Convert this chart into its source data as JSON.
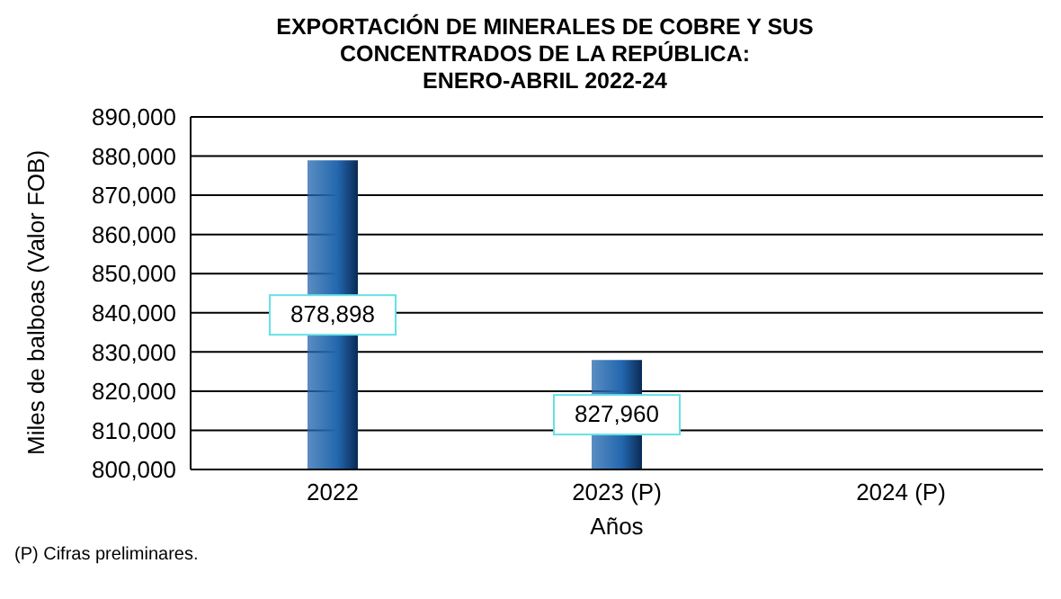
{
  "chart_data": {
    "type": "bar",
    "title": "EXPORTACIÓN DE MINERALES DE COBRE Y SUS CONCENTRADOS DE LA REPÚBLICA: ENERO-ABRIL 2022-24",
    "xlabel": "Años",
    "ylabel": "Miles de balboas (Valor FOB)",
    "annotations": [
      "(P) Cifras preliminares."
    ],
    "categories": [
      "2022",
      "2023 (P)",
      "2024 (P)"
    ],
    "values": [
      878898,
      827960,
      null
    ],
    "color": "#2367ae",
    "ylim": [
      800000,
      890000
    ],
    "yticks": [
      {
        "value": 800000,
        "label": "800,000"
      },
      {
        "value": 810000,
        "label": "810,000"
      },
      {
        "value": 820000,
        "label": "820,000"
      },
      {
        "value": 830000,
        "label": "830,000"
      },
      {
        "value": 840000,
        "label": "840,000"
      },
      {
        "value": 850000,
        "label": "850,000"
      },
      {
        "value": 860000,
        "label": "860,000"
      },
      {
        "value": 870000,
        "label": "870,000"
      },
      {
        "value": 880000,
        "label": "880,000"
      },
      {
        "value": 890000,
        "label": "890,000"
      }
    ],
    "grid": "y",
    "value_labels": [
      "878,898",
      "827,960",
      null
    ],
    "legend": false
  }
}
